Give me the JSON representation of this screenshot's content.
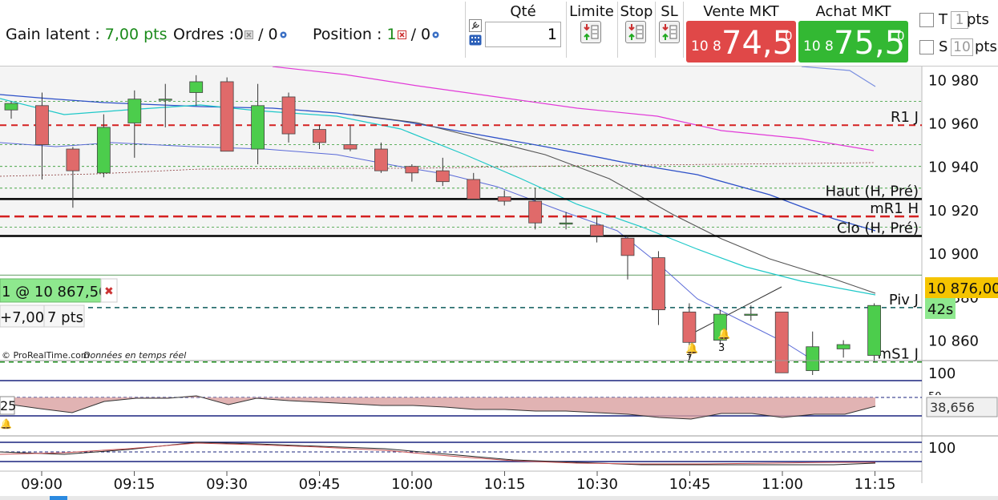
{
  "toolbar": {
    "gain_label": "Gain latent :",
    "gain_value": "7,00 pts",
    "orders_label": "Ordres :",
    "orders_count1": "0",
    "orders_sep": "/ 0",
    "position_label": "Position :",
    "position_count": "1",
    "position_sep": "/ 0",
    "qty_label": "Qté",
    "qty_value": "1",
    "limit_label": "Limite",
    "stop_label": "Stop",
    "sl_label": "SL",
    "sell_label": "Vente MKT",
    "sell_small": "10 8",
    "sell_big": "74,5",
    "sell_sup": "0",
    "buy_label": "Achat MKT",
    "buy_small": "10 8",
    "buy_big": "75,5",
    "buy_sup": "0",
    "t_label": "T",
    "t_value": "1",
    "s_label": "S",
    "s_value": "10",
    "pts_label": "pts",
    "sell_color": "#e04848",
    "buy_color": "#33b833"
  },
  "position_box": {
    "label": "1 @ 10 867,50",
    "pnl": "+7,00",
    "pts": "7 pts",
    "close_icon": "close-icon"
  },
  "watermark": {
    "source": "© ProRealTime.com",
    "realtime": "Données en temps réel"
  },
  "price_tag": {
    "price": "10 876,00",
    "countdown": "42s"
  },
  "osc1": {
    "left_value": "25",
    "right_value": "38,656",
    "top_tick": "100",
    "partial_tick": "50"
  },
  "osc2": {
    "top_tick": "100"
  },
  "chart_data": {
    "type": "candlestick",
    "ylim": [
      10851,
      10986
    ],
    "y_ticks": [
      10980,
      10960,
      10940,
      10920,
      10900,
      10860
    ],
    "y_tick_labels": [
      "10 980",
      "10 960",
      "10 940",
      "10 920",
      "10 900",
      "10 860"
    ],
    "y_tick_partial": "10 880",
    "x_tick_labels": [
      "09:00",
      "09:15",
      "09:30",
      "09:45",
      "10:00",
      "10:15",
      "10:30",
      "10:45",
      "11:00",
      "11:15"
    ],
    "candles": [
      {
        "t": "08:50",
        "o": 10966,
        "h": 10970,
        "l": 10962,
        "c": 10969
      },
      {
        "t": "08:55",
        "o": 10968,
        "h": 10974,
        "l": 10934,
        "c": 10950
      },
      {
        "t": "09:00",
        "o": 10948,
        "h": 10949,
        "l": 10921,
        "c": 10938
      },
      {
        "t": "09:05",
        "o": 10937,
        "h": 10964,
        "l": 10935,
        "c": 10958
      },
      {
        "t": "09:10",
        "o": 10960,
        "h": 10975,
        "l": 10944,
        "c": 10971
      },
      {
        "t": "09:15",
        "o": 10971,
        "h": 10978,
        "l": 10958,
        "c": 10971
      },
      {
        "t": "09:20",
        "o": 10974,
        "h": 10982,
        "l": 10968,
        "c": 10979
      },
      {
        "t": "09:25",
        "o": 10979,
        "h": 10981,
        "l": 10947,
        "c": 10947
      },
      {
        "t": "09:30",
        "o": 10948,
        "h": 10978,
        "l": 10941,
        "c": 10968
      },
      {
        "t": "09:35",
        "o": 10972,
        "h": 10974,
        "l": 10951,
        "c": 10955
      },
      {
        "t": "09:40",
        "o": 10957,
        "h": 10959,
        "l": 10948,
        "c": 10951
      },
      {
        "t": "09:45",
        "o": 10950,
        "h": 10959,
        "l": 10947,
        "c": 10948
      },
      {
        "t": "09:50",
        "o": 10948,
        "h": 10951,
        "l": 10937,
        "c": 10938
      },
      {
        "t": "09:55",
        "o": 10940,
        "h": 10941,
        "l": 10933,
        "c": 10937
      },
      {
        "t": "10:00",
        "o": 10938,
        "h": 10944,
        "l": 10931,
        "c": 10933
      },
      {
        "t": "10:05",
        "o": 10934,
        "h": 10937,
        "l": 10925,
        "c": 10925
      },
      {
        "t": "10:10",
        "o": 10926,
        "h": 10929,
        "l": 10922,
        "c": 10924
      },
      {
        "t": "10:15",
        "o": 10924,
        "h": 10930,
        "l": 10911,
        "c": 10914
      },
      {
        "t": "10:20",
        "o": 10914,
        "h": 10919,
        "l": 10911,
        "c": 10914
      },
      {
        "t": "10:25",
        "o": 10913,
        "h": 10917,
        "l": 10905,
        "c": 10908
      },
      {
        "t": "10:30",
        "o": 10907,
        "h": 10908,
        "l": 10888,
        "c": 10899
      },
      {
        "t": "10:35",
        "o": 10898,
        "h": 10901,
        "l": 10867,
        "c": 10874
      },
      {
        "t": "10:40",
        "o": 10873,
        "h": 10877,
        "l": 10852,
        "c": 10859
      },
      {
        "t": "10:45",
        "o": 10860,
        "h": 10874,
        "l": 10858,
        "c": 10872
      },
      {
        "t": "10:50",
        "o": 10872,
        "h": 10876,
        "l": 10869,
        "c": 10872
      },
      {
        "t": "10:55",
        "o": 10873,
        "h": 10873,
        "l": 10845,
        "c": 10845
      },
      {
        "t": "11:00",
        "o": 10846,
        "h": 10864,
        "l": 10844,
        "c": 10857
      },
      {
        "t": "11:05",
        "o": 10856,
        "h": 10860,
        "l": 10852,
        "c": 10858
      },
      {
        "t": "11:10",
        "o": 10853,
        "h": 10877,
        "l": 10850,
        "c": 10876
      }
    ],
    "levels": [
      {
        "label": "R1 J",
        "value": 10959,
        "color": "#d42020"
      },
      {
        "label": "Haut (H, Pré)",
        "value": 10925,
        "color": "#000000"
      },
      {
        "label": "mR1 H",
        "value": 10917,
        "color": "#d42020"
      },
      {
        "label": "Clo (H, Pré)",
        "value": 10908,
        "color": "#000000"
      },
      {
        "label": "Piv J",
        "value": 10875,
        "color": "#0a5a5a"
      },
      {
        "label": "mS1 J",
        "value": 10850,
        "color": "#1a8a1a"
      }
    ],
    "alerts": [
      "7",
      "3"
    ]
  }
}
